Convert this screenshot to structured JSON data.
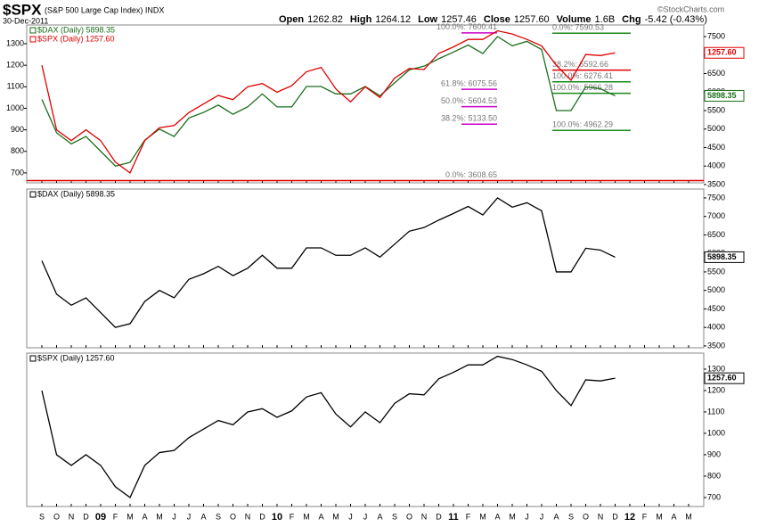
{
  "header": {
    "symbol": "$SPX",
    "name": "(S&P 500 Large Cap Index) INDX",
    "date": "30-Dec-2011",
    "quote": [
      {
        "label": "Open",
        "value": "1262.82"
      },
      {
        "label": "High",
        "value": "1264.12"
      },
      {
        "label": "Low",
        "value": "1257.46"
      },
      {
        "label": "Close",
        "value": "1257.60"
      },
      {
        "label": "Volume",
        "value": "1.6B"
      },
      {
        "label": "Chg",
        "value": "-5.42 (-0.43%)"
      }
    ],
    "credit": "©StockCharts.com"
  },
  "chart_data": [
    {
      "type": "line",
      "ylim": [
        654,
        1387
      ],
      "yticks": [
        700,
        800,
        900,
        1000,
        1100,
        1200,
        1300
      ],
      "y2lim": [
        3548,
        7813
      ],
      "y2ticks": [
        3500,
        4000,
        4500,
        5000,
        5500,
        6000,
        6500,
        7000,
        7500
      ],
      "series": [
        {
          "name": "$DAX (Daily) 5898.35",
          "color": "#1a6e1a",
          "axis": "y2",
          "values": [
            5800,
            4900,
            4600,
            4800,
            4400,
            4000,
            4100,
            4700,
            5000,
            4800,
            5300,
            5450,
            5650,
            5400,
            5600,
            5950,
            5600,
            5600,
            6150,
            6150,
            5950,
            5950,
            6150,
            5900,
            6250,
            6600,
            6700,
            6900,
            7080,
            7270,
            7040,
            7500,
            7250,
            7370,
            7150,
            5500,
            5500,
            6140,
            6090,
            5898.35,
            null,
            null,
            null,
            null,
            null
          ]
        },
        {
          "name": "$SPX (Daily) 1257.60",
          "color": "#e00000",
          "axis": "y",
          "values": [
            1200,
            900,
            850,
            900,
            850,
            750,
            700,
            850,
            910,
            920,
            980,
            1020,
            1060,
            1040,
            1100,
            1115,
            1075,
            1105,
            1170,
            1190,
            1090,
            1030,
            1100,
            1050,
            1140,
            1185,
            1180,
            1255,
            1285,
            1320,
            1320,
            1360,
            1345,
            1320,
            1290,
            1200,
            1130,
            1250,
            1245,
            1257.6,
            null,
            null,
            null,
            null,
            null
          ]
        }
      ],
      "last_tags": [
        {
          "value": 1257.6,
          "label": "1257.60",
          "color": "#e00000",
          "axis": "y"
        },
        {
          "value": 5898.35,
          "label": "5898.35",
          "color": "#1a6e1a",
          "axis": "y2"
        }
      ],
      "fibs": [
        {
          "value": 7600.41,
          "label": "100.0%: 7600.41",
          "color": "#cc00cc",
          "span": "left"
        },
        {
          "value": 6075.56,
          "label": "61.8%: 6075.56",
          "color": "#cc00cc",
          "span": "left"
        },
        {
          "value": 5604.53,
          "label": "50.0%: 5604.53",
          "color": "#cc00cc",
          "span": "left"
        },
        {
          "value": 5133.5,
          "label": "38.2%: 5133.50",
          "color": "#cc00cc",
          "span": "left"
        },
        {
          "value": 3608.65,
          "label": "0.0%: 3608.65",
          "color": "#e00000",
          "span": "full"
        },
        {
          "value": 7590.53,
          "label": "0.0%: 7590.53",
          "color": "#1a8a1a",
          "span": "right"
        },
        {
          "value": 6592.66,
          "label": "38.2%: 6592.66",
          "color": "#e00000",
          "span": "right"
        },
        {
          "value": 6276.41,
          "label": "100.0%: 6276.41",
          "color": "#1a8a1a",
          "span": "right"
        },
        {
          "value": 5966.28,
          "label": "100.0%: 5966.28",
          "color": "#1a8a1a",
          "span": "right"
        },
        {
          "value": 4962.29,
          "label": "100.0%: 4962.29",
          "color": "#1a8a1a",
          "span": "right"
        }
      ]
    },
    {
      "type": "line",
      "y2lim": [
        3450,
        7740
      ],
      "y2ticks": [
        3500,
        4000,
        4500,
        5000,
        5500,
        6000,
        6500,
        7000,
        7500
      ],
      "series": [
        {
          "name": "$DAX (Daily) 5898.35",
          "color": "#000000",
          "axis": "y2",
          "values": [
            5800,
            4900,
            4600,
            4800,
            4400,
            4000,
            4100,
            4700,
            5000,
            4800,
            5300,
            5450,
            5650,
            5400,
            5600,
            5950,
            5600,
            5600,
            6150,
            6150,
            5950,
            5950,
            6150,
            5900,
            6250,
            6600,
            6700,
            6900,
            7080,
            7270,
            7040,
            7500,
            7250,
            7370,
            7150,
            5500,
            5500,
            6140,
            6090,
            5898.35,
            null,
            null,
            null,
            null,
            null
          ]
        }
      ],
      "last_tags": [
        {
          "value": 5898.35,
          "label": "5898.35",
          "color": "#000000",
          "axis": "y2"
        }
      ]
    },
    {
      "type": "line",
      "y2lim": [
        658,
        1375
      ],
      "y2ticks": [
        700,
        800,
        900,
        1000,
        1100,
        1200,
        1300
      ],
      "categories": [
        "S",
        "O",
        "N",
        "D",
        "09",
        "F",
        "M",
        "A",
        "M",
        "J",
        "J",
        "A",
        "S",
        "O",
        "N",
        "D",
        "10",
        "F",
        "M",
        "A",
        "M",
        "J",
        "J",
        "A",
        "S",
        "O",
        "N",
        "D",
        "11",
        "F",
        "M",
        "A",
        "M",
        "J",
        "J",
        "A",
        "S",
        "O",
        "N",
        "D",
        "12",
        "F",
        "M",
        "A",
        "M"
      ],
      "series": [
        {
          "name": "$SPX (Daily) 1257.60",
          "color": "#000000",
          "axis": "y2",
          "values": [
            1200,
            900,
            850,
            900,
            850,
            750,
            700,
            850,
            910,
            920,
            980,
            1020,
            1060,
            1040,
            1100,
            1115,
            1075,
            1105,
            1170,
            1190,
            1090,
            1030,
            1100,
            1050,
            1140,
            1185,
            1180,
            1255,
            1285,
            1320,
            1320,
            1360,
            1345,
            1320,
            1290,
            1200,
            1130,
            1250,
            1245,
            1257.6,
            null,
            null,
            null,
            null,
            null
          ]
        }
      ],
      "last_tags": [
        {
          "value": 1257.6,
          "label": "1257.60",
          "color": "#000000",
          "axis": "y2"
        }
      ]
    }
  ]
}
